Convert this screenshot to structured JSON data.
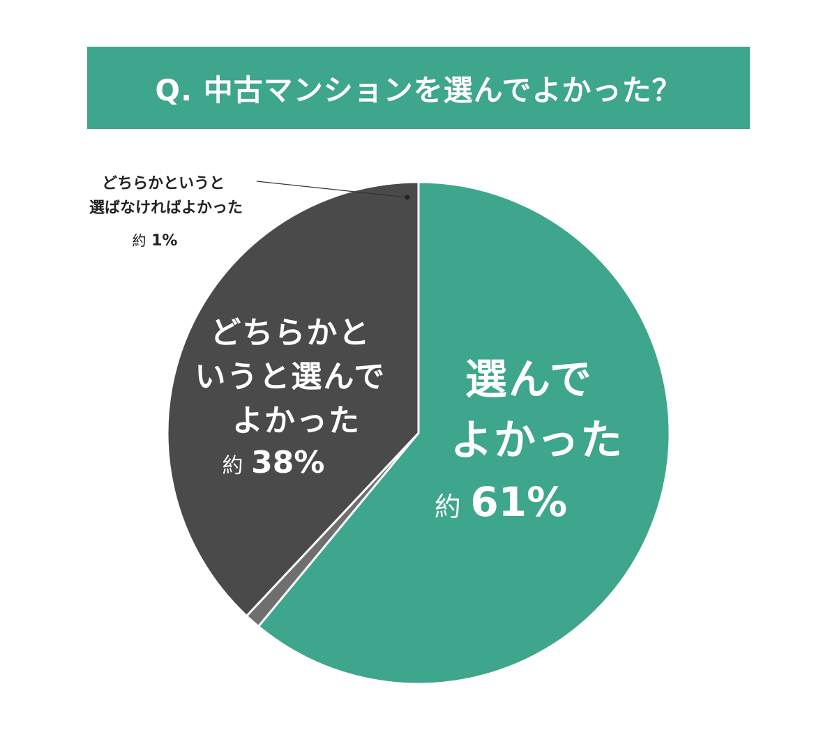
{
  "chart_data": {
    "type": "pie",
    "title": "Q. 中古マンションを選んでよかった？",
    "colors": {
      "title_bg": "#3da68c",
      "good": "#3da68c",
      "neutral_good": "#4a4a4a",
      "neutral_bad": "#6f6f6f",
      "text_light": "#ffffff",
      "text_dark": "#222222"
    },
    "slices": [
      {
        "id": "good",
        "label_lines": [
          "選んで",
          "よかった"
        ],
        "prefix": "約",
        "value": 61,
        "value_text": "61%"
      },
      {
        "id": "neutral_bad",
        "label_lines": [
          "どちらかというと",
          "選ばなければよかった"
        ],
        "prefix": "約",
        "value": 1,
        "value_text": "1%"
      },
      {
        "id": "neutral_good",
        "label_lines": [
          "どちらかと",
          "いうと選んで",
          "よかった"
        ],
        "prefix": "約",
        "value": 38,
        "value_text": "38%"
      }
    ]
  }
}
